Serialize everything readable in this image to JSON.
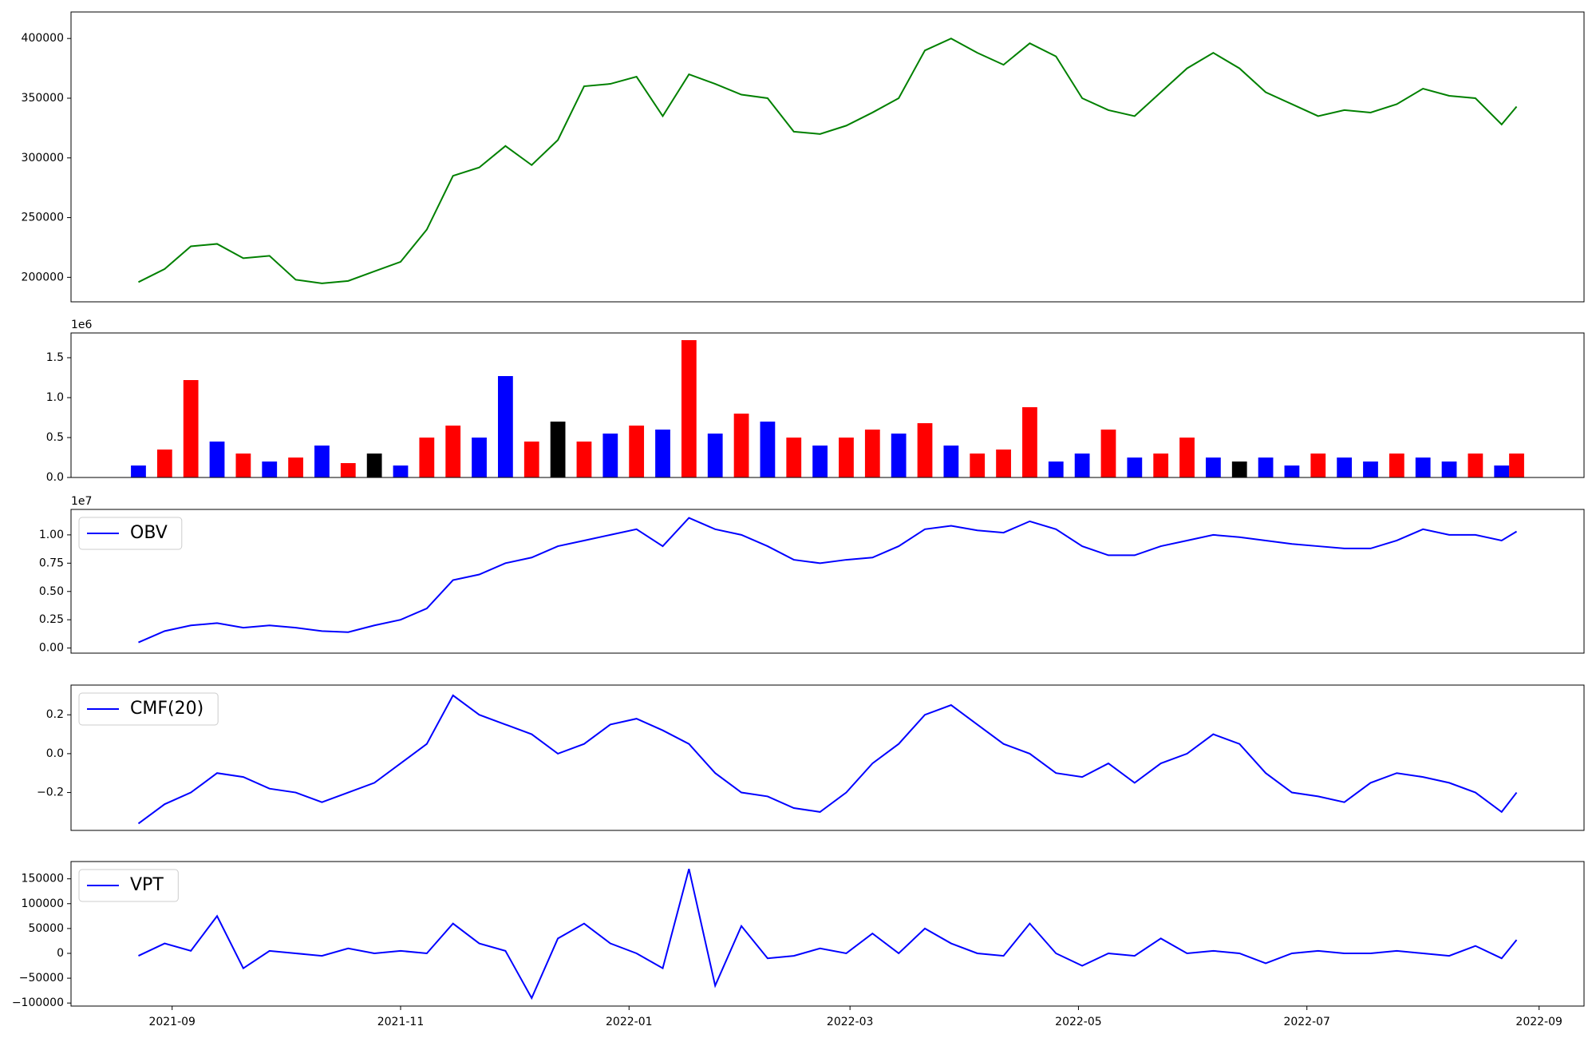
{
  "chart_data": [
    {
      "type": "line",
      "x": [
        "2021-08-23",
        "2021-08-30",
        "2021-09-06",
        "2021-09-13",
        "2021-09-20",
        "2021-09-27",
        "2021-10-04",
        "2021-10-11",
        "2021-10-18",
        "2021-10-25",
        "2021-11-01",
        "2021-11-08",
        "2021-11-15",
        "2021-11-22",
        "2021-11-29",
        "2021-12-06",
        "2021-12-13",
        "2021-12-20",
        "2021-12-27",
        "2022-01-03",
        "2022-01-10",
        "2022-01-17",
        "2022-01-24",
        "2022-01-31",
        "2022-02-07",
        "2022-02-14",
        "2022-02-21",
        "2022-02-28",
        "2022-03-07",
        "2022-03-14",
        "2022-03-21",
        "2022-03-28",
        "2022-04-04",
        "2022-04-11",
        "2022-04-18",
        "2022-04-25",
        "2022-05-02",
        "2022-05-09",
        "2022-05-16",
        "2022-05-23",
        "2022-05-30",
        "2022-06-06",
        "2022-06-13",
        "2022-06-20",
        "2022-06-27",
        "2022-07-04",
        "2022-07-11",
        "2022-07-18",
        "2022-07-25",
        "2022-08-01",
        "2022-08-08",
        "2022-08-15",
        "2022-08-22",
        "2022-08-26"
      ],
      "values": [
        196000,
        207000,
        226000,
        228000,
        216000,
        218000,
        198000,
        195000,
        197000,
        205000,
        213000,
        240000,
        285000,
        292000,
        310000,
        294000,
        315000,
        360000,
        362000,
        368000,
        335000,
        370000,
        362000,
        353000,
        350000,
        322000,
        320000,
        327000,
        338000,
        350000,
        390000,
        400000,
        388000,
        378000,
        396000,
        385000,
        350000,
        340000,
        335000,
        355000,
        375000,
        388000,
        375000,
        355000,
        345000,
        335000,
        340000,
        338000,
        345000,
        358000,
        352000,
        350000,
        328000,
        343000
      ],
      "color": "green",
      "xlim": [
        "2021-08-05",
        "2022-09-13"
      ],
      "ylim": [
        179500,
        422200
      ],
      "yticks": [
        200000,
        250000,
        300000,
        350000,
        400000
      ]
    },
    {
      "type": "bar",
      "x": [
        "2021-08-23",
        "2021-08-30",
        "2021-09-06",
        "2021-09-13",
        "2021-09-20",
        "2021-09-27",
        "2021-10-04",
        "2021-10-11",
        "2021-10-18",
        "2021-10-25",
        "2021-11-01",
        "2021-11-08",
        "2021-11-15",
        "2021-11-22",
        "2021-11-29",
        "2021-12-06",
        "2021-12-13",
        "2021-12-20",
        "2021-12-27",
        "2022-01-03",
        "2022-01-10",
        "2022-01-17",
        "2022-01-24",
        "2022-01-31",
        "2022-02-07",
        "2022-02-14",
        "2022-02-21",
        "2022-02-28",
        "2022-03-07",
        "2022-03-14",
        "2022-03-21",
        "2022-03-28",
        "2022-04-04",
        "2022-04-11",
        "2022-04-18",
        "2022-04-25",
        "2022-05-02",
        "2022-05-09",
        "2022-05-16",
        "2022-05-23",
        "2022-05-30",
        "2022-06-06",
        "2022-06-13",
        "2022-06-20",
        "2022-06-27",
        "2022-07-04",
        "2022-07-11",
        "2022-07-18",
        "2022-07-25",
        "2022-08-01",
        "2022-08-08",
        "2022-08-15",
        "2022-08-22",
        "2022-08-26"
      ],
      "values": [
        0.15,
        0.35,
        1.22,
        0.45,
        0.3,
        0.2,
        0.25,
        0.4,
        0.18,
        0.3,
        0.15,
        0.5,
        0.65,
        0.5,
        1.27,
        0.45,
        0.7,
        0.45,
        0.55,
        0.65,
        0.6,
        1.72,
        0.55,
        0.8,
        0.7,
        0.5,
        0.4,
        0.5,
        0.6,
        0.55,
        0.68,
        0.4,
        0.3,
        0.35,
        0.88,
        0.2,
        0.3,
        0.6,
        0.25,
        0.3,
        0.5,
        0.25,
        0.2,
        0.25,
        0.15,
        0.3,
        0.25,
        0.2,
        0.3,
        0.25,
        0.2,
        0.3,
        0.15,
        0.3
      ],
      "colors": [
        "blue",
        "red",
        "red",
        "blue",
        "red",
        "blue",
        "red",
        "blue",
        "red",
        "black",
        "blue",
        "red",
        "red",
        "blue",
        "blue",
        "red",
        "black",
        "red",
        "blue",
        "red",
        "blue",
        "red",
        "blue",
        "red",
        "blue",
        "red",
        "blue",
        "red",
        "red",
        "blue",
        "red",
        "blue",
        "red",
        "red",
        "red",
        "blue",
        "blue",
        "red",
        "blue",
        "red",
        "red",
        "blue",
        "black",
        "blue",
        "blue",
        "red",
        "blue",
        "blue",
        "red",
        "blue",
        "blue",
        "red",
        "blue",
        "red"
      ],
      "xlim": [
        "2021-08-05",
        "2022-09-13"
      ],
      "ylim": [
        0,
        1.81
      ],
      "yticks": [
        {
          "value": 0,
          "label": "0.0"
        },
        0.5,
        {
          "value": 1,
          "label": "1.0"
        },
        1.5
      ],
      "offset_label": "1e6"
    },
    {
      "type": "line",
      "x": [
        "2021-08-23",
        "2021-08-30",
        "2021-09-06",
        "2021-09-13",
        "2021-09-20",
        "2021-09-27",
        "2021-10-04",
        "2021-10-11",
        "2021-10-18",
        "2021-10-25",
        "2021-11-01",
        "2021-11-08",
        "2021-11-15",
        "2021-11-22",
        "2021-11-29",
        "2021-12-06",
        "2021-12-13",
        "2021-12-20",
        "2021-12-27",
        "2022-01-03",
        "2022-01-10",
        "2022-01-17",
        "2022-01-24",
        "2022-01-31",
        "2022-02-07",
        "2022-02-14",
        "2022-02-21",
        "2022-02-28",
        "2022-03-07",
        "2022-03-14",
        "2022-03-21",
        "2022-03-28",
        "2022-04-04",
        "2022-04-11",
        "2022-04-18",
        "2022-04-25",
        "2022-05-02",
        "2022-05-09",
        "2022-05-16",
        "2022-05-23",
        "2022-05-30",
        "2022-06-06",
        "2022-06-13",
        "2022-06-20",
        "2022-06-27",
        "2022-07-04",
        "2022-07-11",
        "2022-07-18",
        "2022-07-25",
        "2022-08-01",
        "2022-08-08",
        "2022-08-15",
        "2022-08-22",
        "2022-08-26"
      ],
      "series": [
        {
          "name": "OBV",
          "color": "blue",
          "values": [
            0.05,
            0.15,
            0.2,
            0.22,
            0.18,
            0.2,
            0.18,
            0.15,
            0.14,
            0.2,
            0.25,
            0.35,
            0.6,
            0.65,
            0.75,
            0.8,
            0.9,
            0.95,
            1.0,
            1.05,
            0.9,
            1.15,
            1.05,
            1.0,
            0.9,
            0.78,
            0.75,
            0.78,
            0.8,
            0.9,
            1.05,
            1.08,
            1.04,
            1.02,
            1.12,
            1.05,
            0.9,
            0.82,
            0.82,
            0.9,
            0.95,
            1.0,
            0.98,
            0.95,
            0.92,
            0.9,
            0.88,
            0.88,
            0.95,
            1.05,
            1.0,
            1.0,
            0.95,
            1.03
          ]
        }
      ],
      "xlim": [
        "2021-08-05",
        "2022-09-13"
      ],
      "ylim": [
        -0.045,
        1.225
      ],
      "yticks": [
        {
          "value": 0,
          "label": "0.00"
        },
        0.25,
        {
          "value": 0.5,
          "label": "0.50"
        },
        0.75,
        {
          "value": 1,
          "label": "1.00"
        }
      ],
      "offset_label": "1e7",
      "legend": "upper left"
    },
    {
      "type": "line",
      "x": [
        "2021-08-23",
        "2021-08-30",
        "2021-09-06",
        "2021-09-13",
        "2021-09-20",
        "2021-09-27",
        "2021-10-04",
        "2021-10-11",
        "2021-10-18",
        "2021-10-25",
        "2021-11-01",
        "2021-11-08",
        "2021-11-15",
        "2021-11-22",
        "2021-11-29",
        "2021-12-06",
        "2021-12-13",
        "2021-12-20",
        "2021-12-27",
        "2022-01-03",
        "2022-01-10",
        "2022-01-17",
        "2022-01-24",
        "2022-01-31",
        "2022-02-07",
        "2022-02-14",
        "2022-02-21",
        "2022-02-28",
        "2022-03-07",
        "2022-03-14",
        "2022-03-21",
        "2022-03-28",
        "2022-04-04",
        "2022-04-11",
        "2022-04-18",
        "2022-04-25",
        "2022-05-02",
        "2022-05-09",
        "2022-05-16",
        "2022-05-23",
        "2022-05-30",
        "2022-06-06",
        "2022-06-13",
        "2022-06-20",
        "2022-06-27",
        "2022-07-04",
        "2022-07-11",
        "2022-07-18",
        "2022-07-25",
        "2022-08-01",
        "2022-08-08",
        "2022-08-15",
        "2022-08-22",
        "2022-08-26"
      ],
      "series": [
        {
          "name": "CMF(20)",
          "color": "blue",
          "values": [
            -0.36,
            -0.26,
            -0.2,
            -0.1,
            -0.12,
            -0.18,
            -0.2,
            -0.25,
            -0.2,
            -0.15,
            -0.05,
            0.05,
            0.3,
            0.2,
            0.15,
            0.1,
            0.0,
            0.05,
            0.15,
            0.18,
            0.12,
            0.05,
            -0.1,
            -0.2,
            -0.22,
            -0.28,
            -0.3,
            -0.2,
            -0.05,
            0.05,
            0.2,
            0.25,
            0.15,
            0.05,
            0.0,
            -0.1,
            -0.12,
            -0.05,
            -0.15,
            -0.05,
            0.0,
            0.1,
            0.05,
            -0.1,
            -0.2,
            -0.22,
            -0.25,
            -0.15,
            -0.1,
            -0.12,
            -0.15,
            -0.2,
            -0.3,
            -0.2
          ]
        }
      ],
      "xlim": [
        "2021-08-05",
        "2022-09-13"
      ],
      "ylim": [
        -0.395,
        0.353
      ],
      "yticks": [
        {
          "value": -0.2,
          "label": "−0.2"
        },
        {
          "value": 0,
          "label": "0.0"
        },
        0.2
      ],
      "legend": "upper left"
    },
    {
      "type": "line",
      "x": [
        "2021-08-23",
        "2021-08-30",
        "2021-09-06",
        "2021-09-13",
        "2021-09-20",
        "2021-09-27",
        "2021-10-04",
        "2021-10-11",
        "2021-10-18",
        "2021-10-25",
        "2021-11-01",
        "2021-11-08",
        "2021-11-15",
        "2021-11-22",
        "2021-11-29",
        "2021-12-06",
        "2021-12-13",
        "2021-12-20",
        "2021-12-27",
        "2022-01-03",
        "2022-01-10",
        "2022-01-17",
        "2022-01-24",
        "2022-01-31",
        "2022-02-07",
        "2022-02-14",
        "2022-02-21",
        "2022-02-28",
        "2022-03-07",
        "2022-03-14",
        "2022-03-21",
        "2022-03-28",
        "2022-04-04",
        "2022-04-11",
        "2022-04-18",
        "2022-04-25",
        "2022-05-02",
        "2022-05-09",
        "2022-05-16",
        "2022-05-23",
        "2022-05-30",
        "2022-06-06",
        "2022-06-13",
        "2022-06-20",
        "2022-06-27",
        "2022-07-04",
        "2022-07-11",
        "2022-07-18",
        "2022-07-25",
        "2022-08-01",
        "2022-08-08",
        "2022-08-15",
        "2022-08-22",
        "2022-08-26"
      ],
      "series": [
        {
          "name": "VPT",
          "color": "blue",
          "values": [
            -5000,
            20000,
            5000,
            75000,
            -30000,
            5000,
            0,
            -5000,
            10000,
            0,
            5000,
            0,
            60000,
            20000,
            5000,
            -90000,
            30000,
            60000,
            20000,
            0,
            -30000,
            170000,
            -65000,
            55000,
            -10000,
            -5000,
            10000,
            0,
            40000,
            0,
            50000,
            20000,
            0,
            -5000,
            60000,
            0,
            -25000,
            0,
            -5000,
            30000,
            0,
            5000,
            0,
            -20000,
            0,
            5000,
            0,
            0,
            5000,
            0,
            -5000,
            15000,
            -10000,
            27000
          ]
        }
      ],
      "xlim": [
        "2021-08-05",
        "2022-09-13"
      ],
      "ylim": [
        -106100,
        184800
      ],
      "yticks": [
        {
          "value": -100000,
          "label": "−100000"
        },
        {
          "value": -50000,
          "label": "−50000"
        },
        0,
        50000,
        100000,
        150000
      ],
      "xticks": [
        {
          "value": "2021-09-01",
          "label": "2021-09"
        },
        {
          "value": "2021-11-01",
          "label": "2021-11"
        },
        {
          "value": "2022-01-01",
          "label": "2022-01"
        },
        {
          "value": "2022-03-01",
          "label": "2022-03"
        },
        {
          "value": "2022-05-01",
          "label": "2022-05"
        },
        {
          "value": "2022-07-01",
          "label": "2022-07"
        },
        {
          "value": "2022-09-01",
          "label": "2022-09"
        }
      ],
      "legend": "upper left"
    }
  ]
}
